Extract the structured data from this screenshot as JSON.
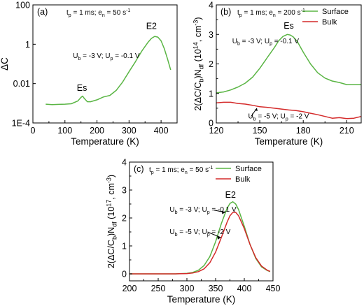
{
  "chart_data": [
    {
      "id": "a",
      "type": "line",
      "panel_label": "(a)",
      "params_text": "t_p = 1 ms; e_n = 50 s^-1",
      "xlabel": "Temperature (K)",
      "ylabel": "ΔC",
      "xlim": [
        0,
        450
      ],
      "ylim": [
        0.0001,
        100
      ],
      "yscale": "log",
      "xticks": [
        0,
        100,
        200,
        300,
        400
      ],
      "xtick_labels": [
        "0",
        "100",
        "200",
        "300",
        "400"
      ],
      "yticks": [
        0.0001,
        0.01,
        1,
        100
      ],
      "ytick_labels": [
        "1E-4",
        "0.01",
        "1",
        "100"
      ],
      "grid": false,
      "annotations": [
        {
          "text": "Es",
          "x": 153,
          "y": 0.0043
        },
        {
          "text": "E2",
          "x": 370,
          "y": 6.0
        },
        {
          "text": "U_b = -3 V; U_p = -0.1 V",
          "x": 125,
          "y": 0.2
        }
      ],
      "series": [
        {
          "color": "#5ab544",
          "x": [
            40,
            60,
            80,
            100,
            120,
            140,
            150,
            155,
            160,
            170,
            180,
            200,
            220,
            240,
            260,
            280,
            300,
            320,
            340,
            360,
            370,
            380,
            390,
            400,
            410,
            420,
            430
          ],
          "y": [
            0.0009,
            0.00085,
            0.00088,
            0.0009,
            0.00095,
            0.0013,
            0.002,
            0.0023,
            0.0018,
            0.0012,
            0.0012,
            0.0015,
            0.0021,
            0.0025,
            0.0045,
            0.012,
            0.04,
            0.13,
            0.45,
            1.3,
            2.0,
            2.5,
            2.3,
            1.5,
            0.6,
            0.18,
            0.05
          ]
        }
      ]
    },
    {
      "id": "b",
      "type": "line",
      "panel_label": "(b)",
      "params_text": "t_p = 1 ms; e_n = 200 s^-1",
      "xlabel": "Temperature (K)",
      "ylabel": "2(ΔC/C_b)N_df (10^14, cm^-3)",
      "xlim": [
        120,
        220
      ],
      "ylim": [
        0,
        4
      ],
      "xticks": [
        120,
        150,
        180,
        210
      ],
      "yticks": [
        0,
        1,
        2,
        3,
        4
      ],
      "grid": false,
      "legend": {
        "position": "top-right",
        "entries": [
          "Surface",
          "Bulk"
        ]
      },
      "annotations": [
        {
          "text": "Es",
          "x": 170,
          "y": 3.2
        },
        {
          "text": "U_b = -3 V; U_p = -0.1 V",
          "x": 131,
          "y": 2.7
        },
        {
          "text": "U_b = -5 V; U_p = -2 V",
          "x": 142,
          "y": 0.15
        }
      ],
      "series": [
        {
          "name": "Surface",
          "color": "#5ab544",
          "x": [
            120,
            125,
            130,
            135,
            140,
            145,
            150,
            155,
            160,
            163,
            166,
            169,
            171,
            173,
            176,
            180,
            185,
            190,
            195,
            200,
            205,
            210,
            215,
            220
          ],
          "y": [
            1.02,
            1.05,
            1.12,
            1.22,
            1.35,
            1.55,
            1.85,
            2.2,
            2.55,
            2.78,
            2.93,
            3.0,
            2.98,
            2.92,
            2.75,
            2.4,
            2.0,
            1.7,
            1.52,
            1.42,
            1.37,
            1.3,
            1.3,
            1.3
          ]
        },
        {
          "name": "Bulk",
          "color": "#d42a2a",
          "x": [
            120,
            125,
            130,
            135,
            140,
            145,
            150,
            155,
            160,
            165,
            170,
            175,
            180,
            185,
            190,
            195,
            200,
            205,
            210,
            215,
            220
          ],
          "y": [
            0.68,
            0.7,
            0.7,
            0.66,
            0.64,
            0.6,
            0.55,
            0.53,
            0.5,
            0.47,
            0.44,
            0.42,
            0.38,
            0.33,
            0.28,
            0.22,
            0.16,
            0.18,
            0.15,
            0.16,
            0.22
          ]
        }
      ]
    },
    {
      "id": "c",
      "type": "line",
      "panel_label": "(c)",
      "params_text": "t_p = 1 ms; e_n = 50 s^-1",
      "xlabel": "Temperature (K)",
      "ylabel": "2(ΔC/C_b)N_df (10^17, cm^-3)",
      "xlim": [
        200,
        450
      ],
      "ylim": [
        -0.25,
        4
      ],
      "xticks": [
        200,
        250,
        300,
        350,
        400,
        450
      ],
      "yticks": [
        0,
        1,
        2,
        3,
        4
      ],
      "grid": false,
      "legend": {
        "position": "top-right",
        "entries": [
          "Surface",
          "Bulk"
        ]
      },
      "annotations": [
        {
          "text": "E2",
          "x": 376,
          "y": 2.72
        },
        {
          "text": "U_b = -3 V; U_p = -0.1 V",
          "x": 270,
          "y": 2.22
        },
        {
          "text": "U_b = -5 V; U_p = -2 V",
          "x": 270,
          "y": 1.42
        }
      ],
      "series": [
        {
          "name": "Surface",
          "color": "#5ab544",
          "x": [
            200,
            250,
            280,
            300,
            310,
            320,
            330,
            340,
            350,
            360,
            370,
            375,
            380,
            385,
            390,
            400,
            410,
            420,
            430,
            440,
            445
          ],
          "y": [
            0,
            0,
            0,
            0.02,
            0.05,
            0.13,
            0.3,
            0.62,
            1.15,
            1.8,
            2.35,
            2.52,
            2.58,
            2.5,
            2.3,
            1.7,
            1.05,
            0.55,
            0.25,
            0.12,
            0.08
          ]
        },
        {
          "name": "Bulk",
          "color": "#d42a2a",
          "x": [
            200,
            250,
            280,
            300,
            310,
            320,
            330,
            340,
            350,
            360,
            370,
            375,
            380,
            385,
            390,
            400,
            410,
            420,
            430,
            440,
            445
          ],
          "y": [
            0,
            0,
            0,
            0.01,
            0.03,
            0.08,
            0.18,
            0.4,
            0.78,
            1.3,
            1.85,
            2.08,
            2.2,
            2.2,
            2.08,
            1.62,
            1.05,
            0.58,
            0.28,
            0.13,
            0.09
          ]
        }
      ]
    }
  ]
}
